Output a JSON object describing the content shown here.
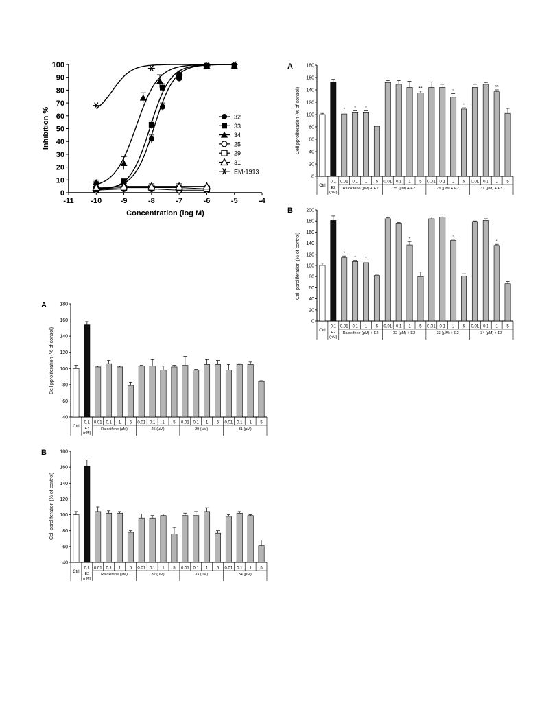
{
  "chart_data": [
    {
      "type": "scatter",
      "xlabel": "Concentration (log M)",
      "ylabel": "Inhibition %",
      "xlim": [
        -11,
        -4
      ],
      "ylim": [
        0,
        100
      ],
      "xticks": [
        "-11",
        "-10",
        "-9",
        "-8",
        "-7",
        "-6",
        "-5",
        "-4"
      ],
      "yticks": [
        "0",
        "10",
        "20",
        "30",
        "40",
        "50",
        "60",
        "70",
        "80",
        "90",
        "100"
      ],
      "legend_position": "right",
      "series": [
        {
          "name": "32",
          "marker": "filled-circle",
          "x": [
            -10,
            -9,
            -8,
            -7.6,
            -7,
            -6,
            -5
          ],
          "y": [
            7,
            8,
            42,
            67,
            89,
            99,
            99
          ],
          "err": [
            2,
            1,
            3,
            3,
            2,
            1,
            1
          ],
          "fit": {
            "ic50": -7.9,
            "hill": 1.2,
            "bottom": 3,
            "top": 100
          }
        },
        {
          "name": "33",
          "marker": "filled-square",
          "x": [
            -10,
            -9,
            -8,
            -7.6,
            -7,
            -6,
            -5
          ],
          "y": [
            2,
            9,
            53,
            82,
            91,
            99,
            99
          ],
          "err": [
            1,
            1,
            3,
            3,
            2,
            1,
            1
          ],
          "fit": {
            "ic50": -8.05,
            "hill": 1.2,
            "bottom": 2,
            "top": 100
          }
        },
        {
          "name": "34",
          "marker": "filled-triangle",
          "x": [
            -10,
            -9,
            -8.3,
            -7.7,
            -7,
            -6,
            -5
          ],
          "y": [
            8,
            23,
            74,
            87,
            93,
            99,
            99
          ],
          "err": [
            2,
            5,
            4,
            5,
            2,
            1,
            1
          ],
          "fit": {
            "ic50": -8.55,
            "hill": 1.1,
            "bottom": 4,
            "top": 100
          }
        },
        {
          "name": "25",
          "marker": "open-circle",
          "x": [
            -10,
            -9,
            -8,
            -7,
            -6
          ],
          "y": [
            2,
            3,
            3,
            2,
            2
          ],
          "err": [
            1,
            1,
            1,
            1,
            1
          ]
        },
        {
          "name": "29",
          "marker": "open-square",
          "x": [
            -10,
            -9,
            -8,
            -7,
            -6
          ],
          "y": [
            3,
            4,
            4,
            4,
            3
          ],
          "err": [
            1,
            2,
            2,
            2,
            1
          ]
        },
        {
          "name": "31",
          "marker": "open-triangle",
          "x": [
            -10,
            -9,
            -8,
            -7,
            -6
          ],
          "y": [
            4,
            5,
            5,
            5,
            5
          ],
          "err": [
            1,
            1,
            2,
            2,
            1
          ]
        },
        {
          "name": "EM-1913",
          "marker": "asterisk",
          "x": [
            -10,
            -8,
            -6,
            -5
          ],
          "y": [
            68,
            97,
            99,
            100
          ],
          "err": [
            0,
            0,
            0,
            0
          ],
          "fit": {
            "ic50": -9.4,
            "hill": 1.3,
            "bottom": 60,
            "top": 100
          }
        }
      ]
    },
    {
      "type": "bar",
      "panel_label": "A",
      "ylabel": "Cell pproliferation (% of control)",
      "ylim": [
        0,
        180
      ],
      "yticks": [
        "0",
        "20",
        "40",
        "60",
        "80",
        "100",
        "120",
        "140",
        "160",
        "180"
      ],
      "categories": [
        "Ctrl",
        "0.1",
        "0.01",
        "0.1",
        "1",
        "5",
        "0.01",
        "0.1",
        "1",
        "5",
        "0.01",
        "0.1",
        "1",
        "5",
        "0.01",
        "0.1",
        "1",
        "5"
      ],
      "values": [
        100,
        153,
        101,
        103,
        103,
        81,
        152,
        149,
        144,
        135,
        144,
        144,
        128,
        109,
        144,
        149,
        137,
        102
      ],
      "errors": [
        2,
        4,
        3,
        3,
        3,
        5,
        3,
        6,
        10,
        3,
        9,
        5,
        6,
        2,
        5,
        3,
        3,
        8
      ],
      "fills": [
        "white",
        "black",
        "gray",
        "gray",
        "gray",
        "gray",
        "gray",
        "gray",
        "gray",
        "gray",
        "gray",
        "gray",
        "gray",
        "gray",
        "gray",
        "gray",
        "gray",
        "gray"
      ],
      "annotations": [
        "",
        "",
        "*",
        "*",
        "*",
        "",
        "",
        "",
        "",
        "**",
        "",
        "",
        "*",
        "*",
        "",
        "",
        "**",
        ""
      ],
      "groups": [
        {
          "label": "Ctrl",
          "span": 1
        },
        {
          "label": "E2\n(nM)",
          "span": 1
        },
        {
          "label": "Raloxifene (µM) + E2",
          "span": 4
        },
        {
          "label": "25 (µM) + E2",
          "span": 4
        },
        {
          "label": "29 (µM) + E2",
          "span": 4
        },
        {
          "label": "31 (µM) + E2",
          "span": 4
        }
      ]
    },
    {
      "type": "bar",
      "panel_label": "B",
      "ylabel": "Cell pproliferation (% of control)",
      "ylim": [
        0,
        200
      ],
      "yticks": [
        "0",
        "20",
        "40",
        "60",
        "80",
        "100",
        "120",
        "140",
        "160",
        "180",
        "200"
      ],
      "categories": [
        "Ctrl",
        "0.1",
        "0.01",
        "0.1",
        "1",
        "5",
        "0.01",
        "0.1",
        "1",
        "5",
        "0.01",
        "0.1",
        "1",
        "5",
        "0.01",
        "0.1",
        "1",
        "5"
      ],
      "values": [
        100,
        181,
        114,
        107,
        105,
        82,
        184,
        176,
        137,
        80,
        184,
        187,
        145,
        81,
        179,
        181,
        136,
        67
      ],
      "errors": [
        4,
        8,
        3,
        2,
        3,
        2,
        2,
        1,
        6,
        8,
        3,
        4,
        2,
        4,
        1,
        3,
        2,
        4
      ],
      "fills": [
        "white",
        "black",
        "gray",
        "gray",
        "gray",
        "gray",
        "gray",
        "gray",
        "gray",
        "gray",
        "gray",
        "gray",
        "gray",
        "gray",
        "gray",
        "gray",
        "gray",
        "gray"
      ],
      "annotations": [
        "",
        "",
        "*",
        "*",
        "*",
        "",
        "",
        "",
        "*",
        "",
        "",
        "",
        "*",
        "",
        "",
        "",
        "*",
        ""
      ],
      "groups": [
        {
          "label": "Ctrl",
          "span": 1
        },
        {
          "label": "E2\n(nM)",
          "span": 1
        },
        {
          "label": "Raloxifene (µM) + E2",
          "span": 4
        },
        {
          "label": "32 (µM) + E2",
          "span": 4
        },
        {
          "label": "33 (µM) + E2",
          "span": 4
        },
        {
          "label": "34 (µM) + E2",
          "span": 4
        }
      ]
    },
    {
      "type": "bar",
      "panel_label": "A",
      "ylabel": "Cell pproliferation (% of control)",
      "ylim": [
        40,
        180
      ],
      "yticks": [
        "40",
        "60",
        "80",
        "100",
        "120",
        "140",
        "160",
        "180"
      ],
      "categories": [
        "Ctrl",
        "0.1",
        "0.01",
        "0.1",
        "1",
        "5",
        "0.01",
        "0.1",
        "1",
        "5",
        "0.01",
        "0.1",
        "1",
        "5",
        "0.01",
        "0.1",
        "1",
        "5"
      ],
      "values": [
        100,
        154,
        102,
        106,
        102,
        79,
        103,
        103,
        98,
        102,
        104,
        98,
        105,
        105,
        98,
        105,
        105,
        84
      ],
      "errors": [
        4,
        4,
        1,
        4,
        1,
        4,
        1,
        8,
        5,
        2,
        11,
        1,
        6,
        5,
        7,
        1,
        3,
        1
      ],
      "fills": [
        "white",
        "black",
        "gray",
        "gray",
        "gray",
        "gray",
        "gray",
        "gray",
        "gray",
        "gray",
        "gray",
        "gray",
        "gray",
        "gray",
        "gray",
        "gray",
        "gray",
        "gray"
      ],
      "annotations": [
        "",
        "",
        "",
        "",
        "",
        "",
        "",
        "",
        "",
        "",
        "",
        "",
        "",
        "",
        "",
        "",
        "",
        ""
      ],
      "groups": [
        {
          "label": "Ctrl",
          "span": 1
        },
        {
          "label": "E2\n(nM)",
          "span": 1
        },
        {
          "label": "Raloxifene (µM)",
          "span": 4
        },
        {
          "label": "25 (µM)",
          "span": 4
        },
        {
          "label": "29 (µM)",
          "span": 4
        },
        {
          "label": "31 (µM)",
          "span": 4
        }
      ]
    },
    {
      "type": "bar",
      "panel_label": "B",
      "ylabel": "Cell pproliferation (% of control)",
      "ylim": [
        40,
        180
      ],
      "yticks": [
        "40",
        "60",
        "80",
        "100",
        "120",
        "140",
        "160",
        "180"
      ],
      "categories": [
        "Ctrl",
        "0.1",
        "0.01",
        "0.1",
        "1",
        "5",
        "0.01",
        "0.1",
        "1",
        "5",
        "0.01",
        "0.1",
        "1",
        "5",
        "0.01",
        "0.1",
        "1",
        "5"
      ],
      "values": [
        100,
        161,
        104,
        102,
        102,
        78,
        96,
        96,
        99,
        76,
        99,
        99,
        104,
        77,
        98,
        102,
        99,
        61
      ],
      "errors": [
        4,
        8,
        6,
        3,
        2,
        2,
        5,
        3,
        2,
        8,
        3,
        5,
        5,
        3,
        2,
        2,
        1,
        7
      ],
      "fills": [
        "white",
        "black",
        "gray",
        "gray",
        "gray",
        "gray",
        "gray",
        "gray",
        "gray",
        "gray",
        "gray",
        "gray",
        "gray",
        "gray",
        "gray",
        "gray",
        "gray",
        "gray"
      ],
      "annotations": [
        "",
        "",
        "",
        "",
        "",
        "",
        "",
        "",
        "",
        "",
        "",
        "",
        "",
        "",
        "",
        "",
        "",
        ""
      ],
      "groups": [
        {
          "label": "Ctrl",
          "span": 1
        },
        {
          "label": "E2\n(nM)",
          "span": 1
        },
        {
          "label": "Raloxifene (µM)",
          "span": 4
        },
        {
          "label": "32 (µM)",
          "span": 4
        },
        {
          "label": "33 (µM)",
          "span": 4
        },
        {
          "label": "34 (µM)",
          "span": 4
        }
      ]
    }
  ],
  "colors": {
    "bar_gray": "#b5b5b5",
    "bar_black": "#111111",
    "axis": "#000000"
  }
}
